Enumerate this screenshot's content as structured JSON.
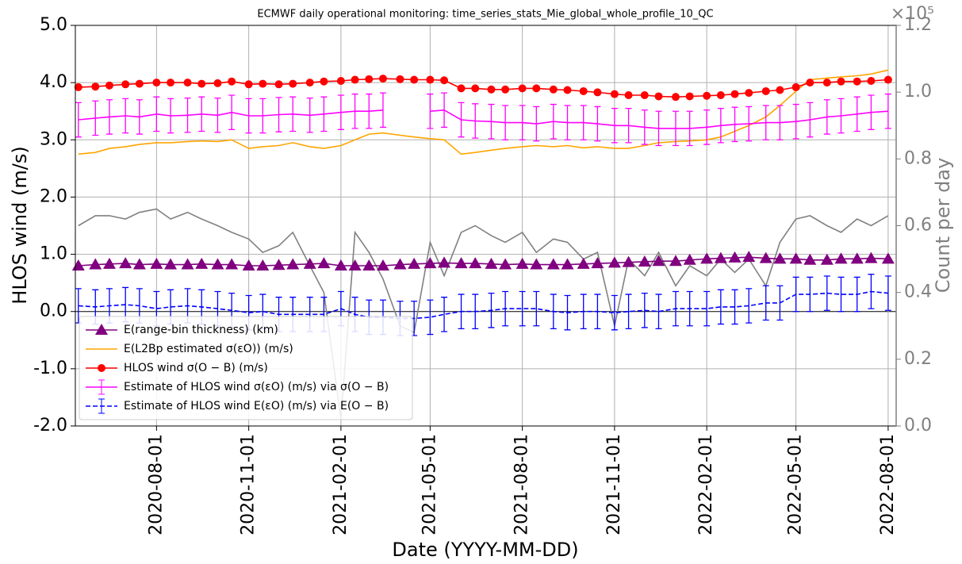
{
  "chart_data": {
    "type": "line",
    "title": "ECMWF daily operational monitoring: time_series_stats_Mie_global_whole_profile_10_QC",
    "x_label": "Date (YYYY-MM-DD)",
    "y_label": "HLOS wind (m/s)",
    "y2_label": "Count per day",
    "y2_offset": "×10⁵",
    "x": [
      "2020-05-15",
      "2020-06-01",
      "2020-06-15",
      "2020-07-01",
      "2020-07-15",
      "2020-08-01",
      "2020-08-15",
      "2020-09-01",
      "2020-09-15",
      "2020-10-01",
      "2020-10-15",
      "2020-11-01",
      "2020-11-15",
      "2020-12-01",
      "2020-12-15",
      "2021-01-01",
      "2021-01-15",
      "2021-02-01",
      "2021-02-15",
      "2021-03-01",
      "2021-03-15",
      "2021-04-01",
      "2021-04-15",
      "2021-05-01",
      "2021-05-15",
      "2021-06-01",
      "2021-06-15",
      "2021-07-01",
      "2021-07-15",
      "2021-08-01",
      "2021-08-15",
      "2021-09-01",
      "2021-09-15",
      "2021-10-01",
      "2021-10-15",
      "2021-11-01",
      "2021-11-15",
      "2021-12-01",
      "2021-12-15",
      "2022-01-01",
      "2022-01-15",
      "2022-02-01",
      "2022-02-15",
      "2022-03-01",
      "2022-03-15",
      "2022-04-01",
      "2022-04-15",
      "2022-05-01",
      "2022-05-15",
      "2022-06-01",
      "2022-06-15",
      "2022-07-01",
      "2022-07-15",
      "2022-08-01"
    ],
    "xlim": [
      "2020-05-12",
      "2022-08-09"
    ],
    "xticks": [
      "2020-08-01",
      "2020-11-01",
      "2021-02-01",
      "2021-05-01",
      "2021-08-01",
      "2021-11-01",
      "2022-02-01",
      "2022-05-01",
      "2022-08-01"
    ],
    "ylim": [
      -2,
      5
    ],
    "yticks": [
      {
        "value": -2,
        "label": "-2.0"
      },
      {
        "value": -1,
        "label": "-1.0"
      },
      {
        "value": 0,
        "label": "0.0"
      },
      {
        "value": 1,
        "label": "1.0"
      },
      {
        "value": 2,
        "label": "2.0"
      },
      {
        "value": 3,
        "label": "3.0"
      },
      {
        "value": 4,
        "label": "4.0"
      },
      {
        "value": 5,
        "label": "5.0"
      }
    ],
    "y2lim": [
      0,
      120000
    ],
    "y2ticks": [
      {
        "value": 0,
        "label": "0.0"
      },
      {
        "value": 20000,
        "label": "0.2"
      },
      {
        "value": 40000,
        "label": "0.4"
      },
      {
        "value": 60000,
        "label": "0.6"
      },
      {
        "value": 80000,
        "label": "0.8"
      },
      {
        "value": 100000,
        "label": "1.0"
      },
      {
        "value": 120000,
        "label": "1.2"
      }
    ],
    "grid": true,
    "legend": "lower left",
    "series": [
      {
        "color": "#808080",
        "axis": "y2",
        "values": [
          60000,
          63000,
          63000,
          62000,
          64000,
          65000,
          62000,
          64000,
          62000,
          60000,
          58000,
          56000,
          52000,
          54000,
          58000,
          48000,
          40000,
          2000,
          58000,
          52000,
          44000,
          30000,
          28000,
          55000,
          45000,
          58000,
          60000,
          57000,
          55000,
          58000,
          52000,
          56000,
          55000,
          50000,
          52000,
          30000,
          50000,
          45000,
          52000,
          42000,
          48000,
          45000,
          50000,
          46000,
          50000,
          42000,
          55000,
          62000,
          63000,
          60000,
          58000,
          62000,
          60000,
          63000
        ]
      },
      {
        "name": "E(range-bin thickness) (km)",
        "color": "#800080",
        "marker": "triangle",
        "values": [
          0.8,
          0.82,
          0.83,
          0.84,
          0.82,
          0.83,
          0.82,
          0.82,
          0.83,
          0.82,
          0.82,
          0.8,
          0.8,
          0.81,
          0.82,
          0.83,
          0.84,
          0.8,
          0.8,
          0.8,
          0.8,
          0.82,
          0.83,
          0.84,
          0.85,
          0.84,
          0.84,
          0.83,
          0.82,
          0.83,
          0.82,
          0.82,
          0.82,
          0.83,
          0.84,
          0.85,
          0.86,
          0.87,
          0.88,
          0.88,
          0.9,
          0.92,
          0.93,
          0.94,
          0.95,
          0.93,
          0.92,
          0.92,
          0.9,
          0.9,
          0.92,
          0.92,
          0.93,
          0.92
        ]
      },
      {
        "name": "E(L2Bp estimated σ(εO)) (m/s)",
        "color": "#ffa500",
        "values": [
          2.75,
          2.78,
          2.85,
          2.88,
          2.92,
          2.95,
          2.95,
          2.97,
          2.98,
          2.97,
          3.0,
          2.85,
          2.88,
          2.9,
          2.95,
          2.88,
          2.85,
          2.9,
          3.0,
          3.1,
          3.12,
          3.08,
          3.05,
          3.02,
          3.0,
          2.75,
          2.78,
          2.82,
          2.85,
          2.88,
          2.9,
          2.88,
          2.9,
          2.86,
          2.88,
          2.85,
          2.85,
          2.9,
          2.95,
          2.97,
          2.98,
          3.0,
          3.05,
          3.15,
          3.25,
          3.4,
          3.6,
          3.85,
          4.05,
          4.08,
          4.1,
          4.12,
          4.15,
          4.22
        ]
      },
      {
        "name": "HLOS wind σ(O − B) (m/s)",
        "color": "#ff0000",
        "marker": "circle",
        "values": [
          3.92,
          3.93,
          3.95,
          3.97,
          3.98,
          4.0,
          4.0,
          4.0,
          3.98,
          3.99,
          4.02,
          3.97,
          3.98,
          3.97,
          3.98,
          4.0,
          4.02,
          4.03,
          4.05,
          4.06,
          4.07,
          4.06,
          4.05,
          4.05,
          4.04,
          3.9,
          3.9,
          3.88,
          3.88,
          3.9,
          3.9,
          3.88,
          3.87,
          3.85,
          3.83,
          3.8,
          3.78,
          3.78,
          3.76,
          3.75,
          3.76,
          3.77,
          3.78,
          3.8,
          3.82,
          3.85,
          3.87,
          3.92,
          4.0,
          4.0,
          4.02,
          4.02,
          4.03,
          4.05
        ]
      },
      {
        "name": "Estimate of HLOS wind σ(εO) (m/s) via σ(O − B)",
        "color": "#ff00ff",
        "values": [
          3.35,
          3.38,
          3.4,
          3.42,
          3.4,
          3.45,
          3.42,
          3.43,
          3.45,
          3.43,
          3.48,
          3.42,
          3.42,
          3.44,
          3.45,
          3.43,
          3.45,
          3.48,
          3.5,
          3.5,
          3.52,
          null,
          null,
          3.5,
          3.52,
          3.35,
          3.33,
          3.32,
          3.3,
          3.3,
          3.28,
          3.32,
          3.3,
          3.3,
          3.28,
          3.25,
          3.25,
          3.22,
          3.2,
          3.2,
          3.2,
          3.22,
          3.25,
          3.27,
          3.28,
          3.3,
          3.3,
          3.32,
          3.35,
          3.4,
          3.42,
          3.45,
          3.48,
          3.5
        ],
        "errors": [
          0.3,
          0.3,
          0.3,
          0.3,
          0.3,
          0.3,
          0.3,
          0.3,
          0.3,
          0.3,
          0.3,
          0.3,
          0.3,
          0.3,
          0.3,
          0.3,
          0.3,
          0.3,
          0.3,
          0.3,
          0.3,
          null,
          null,
          0.3,
          0.3,
          0.3,
          0.3,
          0.3,
          0.3,
          0.3,
          0.3,
          0.3,
          0.3,
          0.3,
          0.3,
          0.3,
          0.3,
          0.3,
          0.3,
          0.3,
          0.3,
          0.3,
          0.3,
          0.3,
          0.3,
          0.3,
          0.3,
          0.3,
          0.3,
          0.3,
          0.3,
          0.3,
          0.3,
          0.3
        ]
      },
      {
        "name": "Estimate of HLOS wind E(εO) (m/s) via E(O − B)",
        "color": "#0000ff",
        "linestyle": "dashed",
        "values": [
          0.1,
          0.08,
          0.1,
          0.12,
          0.1,
          0.05,
          0.08,
          0.1,
          0.08,
          0.05,
          0.02,
          -0.02,
          0.0,
          -0.05,
          -0.05,
          -0.05,
          -0.05,
          0.05,
          -0.05,
          -0.1,
          -0.1,
          -0.12,
          -0.12,
          -0.1,
          -0.05,
          0.0,
          0.0,
          0.02,
          0.05,
          0.05,
          0.05,
          0.0,
          -0.02,
          0.0,
          0.0,
          -0.02,
          0.0,
          0.02,
          0.0,
          0.05,
          0.05,
          0.05,
          0.08,
          0.08,
          0.1,
          0.15,
          0.15,
          0.3,
          0.3,
          0.32,
          0.3,
          0.3,
          0.35,
          0.32
        ],
        "errors": [
          0.3,
          0.3,
          0.3,
          0.3,
          0.3,
          0.3,
          0.3,
          0.3,
          0.3,
          0.3,
          0.3,
          0.3,
          0.3,
          0.3,
          0.3,
          0.3,
          0.3,
          0.3,
          0.3,
          0.3,
          0.3,
          0.3,
          0.3,
          0.3,
          0.3,
          0.3,
          0.3,
          0.3,
          0.3,
          0.3,
          0.3,
          0.3,
          0.3,
          0.3,
          0.3,
          0.3,
          0.3,
          0.3,
          0.3,
          0.3,
          0.3,
          0.3,
          0.3,
          0.3,
          0.3,
          0.3,
          0.3,
          0.3,
          0.3,
          0.3,
          0.3,
          0.3,
          0.3,
          0.3
        ]
      }
    ]
  }
}
